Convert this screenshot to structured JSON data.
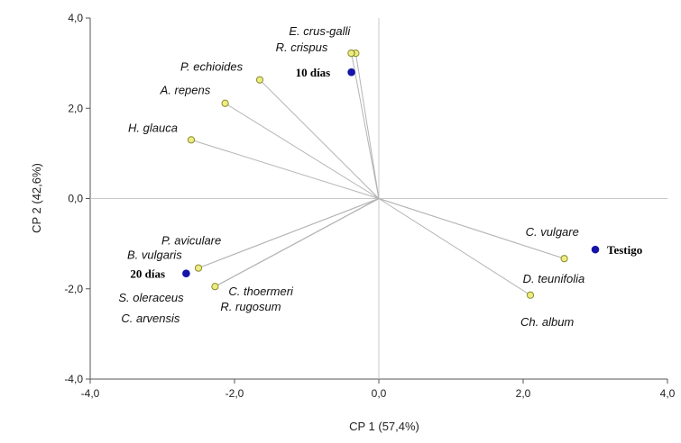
{
  "chart_data": {
    "type": "scatter",
    "subtype": "biplot",
    "title": "",
    "xlabel": "CP 1 (57,4%)",
    "ylabel": "CP 2 (42,6%)",
    "xlim": [
      -4.0,
      4.0
    ],
    "ylim": [
      -4.0,
      4.0
    ],
    "xticks": [
      -4.0,
      -2.0,
      0.0,
      2.0,
      4.0
    ],
    "yticks": [
      -4.0,
      -2.0,
      0.0,
      2.0,
      4.0
    ],
    "xtick_labels": [
      "-4,0",
      "-2,0",
      "0,0",
      "2,0",
      "4,0"
    ],
    "ytick_labels": [
      "-4,0",
      "-2,0",
      "0,0",
      "2,0",
      "4,0"
    ],
    "grid": false,
    "colors": {
      "variable_fill": "#ecec80",
      "variable_stroke": "#8a8a30",
      "treatment_fill": "#1414a8",
      "vector_line": "#b4b4b4",
      "zero_line": "#c8c8c8",
      "axis_line": "#555555"
    },
    "variables": [
      {
        "name": "E. crus-galli",
        "x": -0.32,
        "y": 3.22
      },
      {
        "name": "R. crispus",
        "x": -0.38,
        "y": 3.22
      },
      {
        "name": "P. echioides",
        "x": -1.65,
        "y": 2.63
      },
      {
        "name": "A. repens",
        "x": -2.13,
        "y": 2.11
      },
      {
        "name": "H. glauca",
        "x": -2.6,
        "y": 1.3
      },
      {
        "name": "P. aviculare",
        "x": -2.5,
        "y": -1.54
      },
      {
        "name": "B. vulgaris",
        "x": -2.5,
        "y": -1.54
      },
      {
        "name": "S. oleraceus",
        "x": -2.27,
        "y": -1.95
      },
      {
        "name": "C. arvensis",
        "x": -2.27,
        "y": -1.95
      },
      {
        "name": "C. thoermeri",
        "x": -2.27,
        "y": -1.95
      },
      {
        "name": "R. rugosum",
        "x": -2.27,
        "y": -1.95
      },
      {
        "name": "C. vulgare",
        "x": 2.57,
        "y": -1.33
      },
      {
        "name": "D. teunifolia",
        "x": 2.57,
        "y": -1.33
      },
      {
        "name": "Ch. album",
        "x": 2.1,
        "y": -2.14
      }
    ],
    "treatments": [
      {
        "name": "10 días",
        "x": -0.38,
        "y": 2.8
      },
      {
        "name": "20 días",
        "x": -2.67,
        "y": -1.66
      },
      {
        "name": "Testigo",
        "x": 3.0,
        "y": -1.13
      }
    ]
  }
}
